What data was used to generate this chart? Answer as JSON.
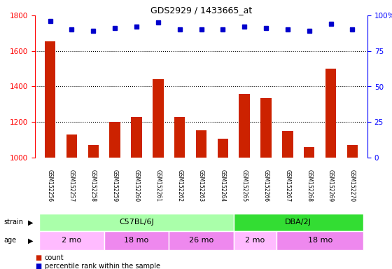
{
  "title": "GDS2929 / 1433665_at",
  "samples": [
    "GSM152256",
    "GSM152257",
    "GSM152258",
    "GSM152259",
    "GSM152260",
    "GSM152261",
    "GSM152262",
    "GSM152263",
    "GSM152264",
    "GSM152265",
    "GSM152266",
    "GSM152267",
    "GSM152268",
    "GSM152269",
    "GSM152270"
  ],
  "counts": [
    1655,
    1130,
    1070,
    1200,
    1230,
    1440,
    1230,
    1155,
    1105,
    1360,
    1335,
    1150,
    1060,
    1500,
    1070
  ],
  "percentile": [
    96,
    90,
    89,
    91,
    92,
    95,
    90,
    90,
    90,
    92,
    91,
    90,
    89,
    94,
    90
  ],
  "ylim_left": [
    1000,
    1800
  ],
  "ylim_right": [
    0,
    100
  ],
  "yticks_left": [
    1000,
    1200,
    1400,
    1600,
    1800
  ],
  "yticks_right": [
    0,
    25,
    50,
    75,
    100
  ],
  "bar_color": "#cc2200",
  "dot_color": "#0000cc",
  "strain_groups": [
    {
      "text": "C57BL/6J",
      "start": 0,
      "end": 8,
      "color": "#aaffaa"
    },
    {
      "text": "DBA/2J",
      "start": 9,
      "end": 14,
      "color": "#33dd33"
    }
  ],
  "age_groups": [
    {
      "text": "2 mo",
      "start": 0,
      "end": 2,
      "color": "#ffbbff"
    },
    {
      "text": "18 mo",
      "start": 3,
      "end": 5,
      "color": "#ee88ee"
    },
    {
      "text": "26 mo",
      "start": 6,
      "end": 8,
      "color": "#ee88ee"
    },
    {
      "text": "2 mo",
      "start": 9,
      "end": 10,
      "color": "#ffbbff"
    },
    {
      "text": "18 mo",
      "start": 11,
      "end": 14,
      "color": "#ee88ee"
    }
  ],
  "legend_count_label": "count",
  "legend_pct_label": "percentile rank within the sample",
  "bg_color": "#ffffff",
  "sample_area_color": "#cccccc",
  "grid_yticks": [
    1200,
    1400,
    1600
  ]
}
